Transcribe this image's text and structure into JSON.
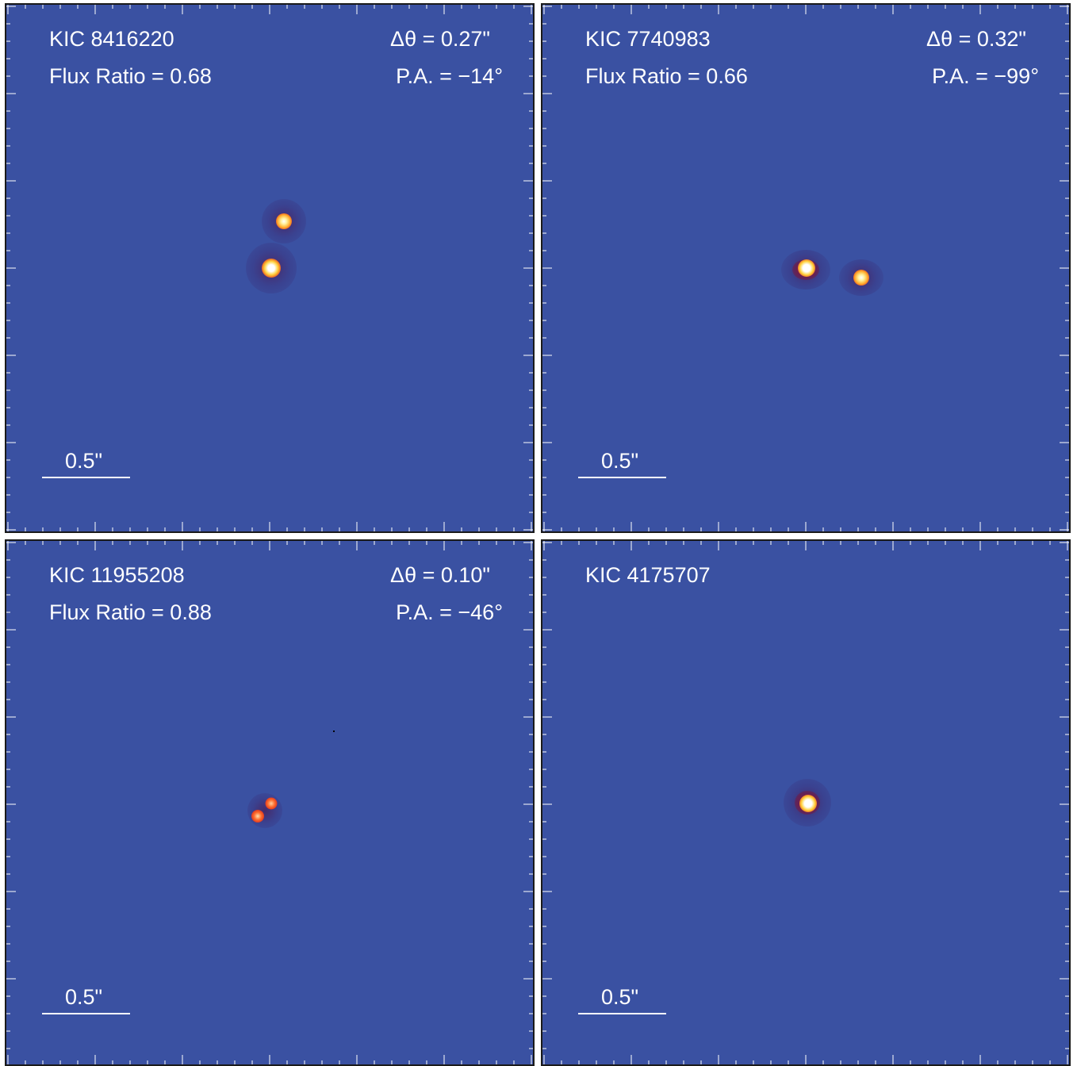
{
  "panels": [
    {
      "name": "KIC 8416220",
      "flux": "Flux Ratio = 0.68",
      "sep": "Δθ = 0.27\"",
      "pa": "P.A. = −14°",
      "scale": "0.5\""
    },
    {
      "name": "KIC 7740983",
      "flux": "Flux Ratio = 0.66",
      "sep": "Δθ = 0.32\"",
      "pa": "P.A. = −99°",
      "scale": "0.5\""
    },
    {
      "name": "KIC 11955208",
      "flux": "Flux Ratio = 0.88",
      "sep": "Δθ = 0.10\"",
      "pa": "P.A. = −46°",
      "scale": "0.5\""
    },
    {
      "name": "KIC 4175707",
      "flux": "",
      "sep": "",
      "pa": "",
      "scale": "0.5\""
    }
  ],
  "colors": {
    "background": "#3a51a2",
    "text": "#ffffff",
    "star_core": "#ffffff",
    "star_mid": "#ffd23c",
    "star_edge": "#e0301a"
  }
}
